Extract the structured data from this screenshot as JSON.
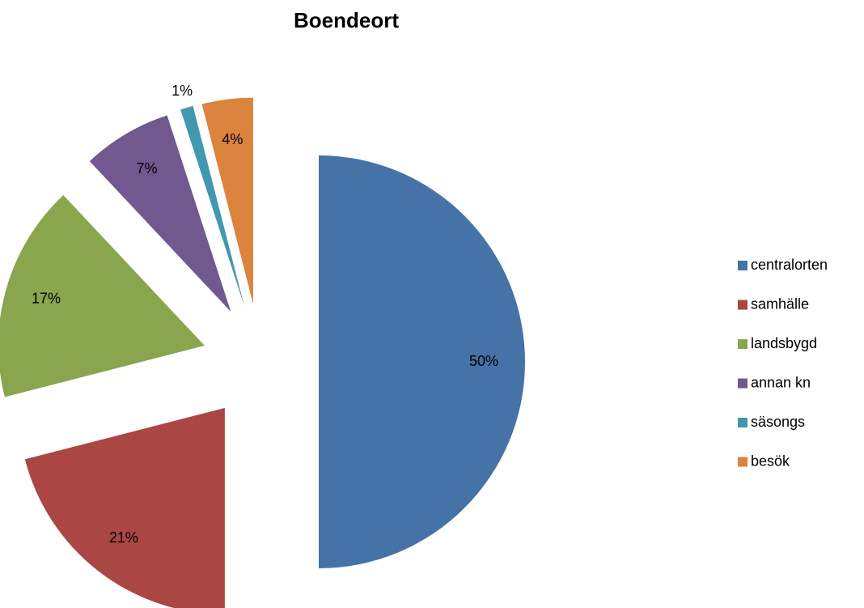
{
  "chart_data": {
    "type": "pie",
    "title": "Boendeort",
    "categories": [
      "centralorten",
      "samhälle",
      "landsbygd",
      "annan kn",
      "säsongs",
      "besök"
    ],
    "values": [
      50,
      21,
      17,
      7,
      1,
      4
    ],
    "value_labels": [
      "50%",
      "21%",
      "17%",
      "7%",
      "1%",
      "4%"
    ],
    "colors": [
      "#4572a7",
      "#aa4643",
      "#89a54e",
      "#71588f",
      "#4198af",
      "#db843d"
    ],
    "legend": "right"
  }
}
